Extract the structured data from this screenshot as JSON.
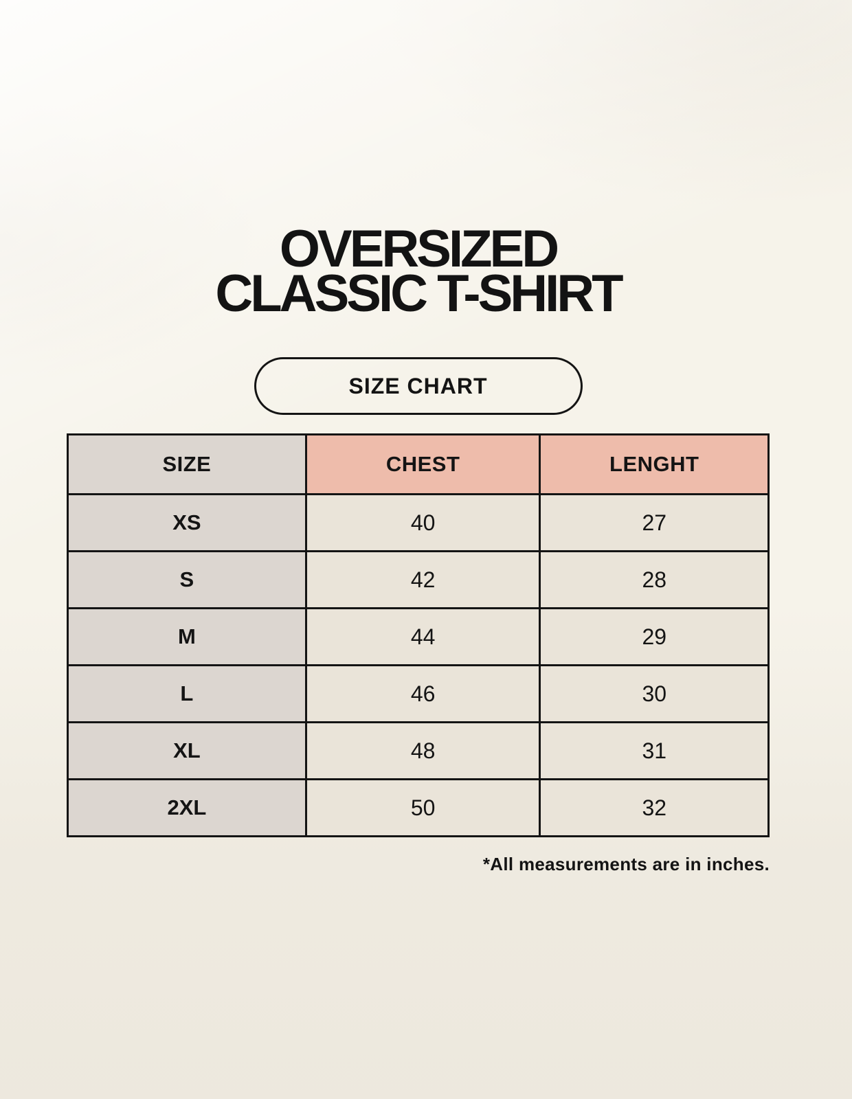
{
  "page": {
    "title_line1": "OVERSIZED",
    "title_line2": "CLASSIC T-SHIRT",
    "badge_label": "SIZE CHART",
    "footnote": "*All measurements are in inches."
  },
  "chart_data": {
    "type": "table",
    "title": "OVERSIZED CLASSIC T-SHIRT",
    "columns": [
      "SIZE",
      "CHEST",
      "LENGHT"
    ],
    "rows": [
      [
        "XS",
        "40",
        "27"
      ],
      [
        "S",
        "42",
        "28"
      ],
      [
        "M",
        "44",
        "29"
      ],
      [
        "L",
        "46",
        "30"
      ],
      [
        "XL",
        "48",
        "31"
      ],
      [
        "2XL",
        "50",
        "32"
      ]
    ]
  },
  "colors": {
    "background": "#f6f3ea",
    "header_accent_pink": "#eebcab",
    "size_column_gray": "#dcd6d0",
    "data_cell_cream": "#eae4d9",
    "border_and_text": "#141414"
  }
}
